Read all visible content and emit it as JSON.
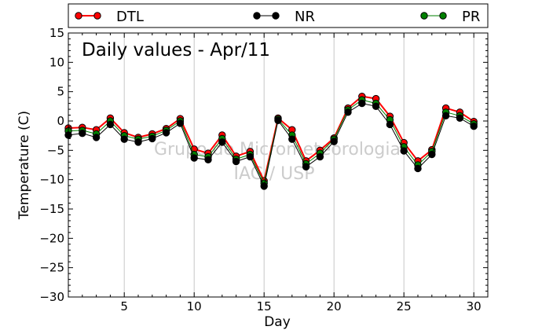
{
  "chart_data": {
    "type": "line",
    "title": "Daily values - Apr/11",
    "xlabel": "Day",
    "ylabel": "Temperature (C)",
    "watermark": [
      "Grupo de Micrometeorologia",
      "IAG / USP"
    ],
    "xlim": [
      1,
      31
    ],
    "ylim": [
      -30,
      15
    ],
    "xticks": [
      5,
      10,
      15,
      20,
      25,
      30
    ],
    "yticks": [
      -30,
      -25,
      -20,
      -15,
      -10,
      -5,
      0,
      5,
      10,
      15
    ],
    "grid": "vertical",
    "legend_position": "top",
    "x": [
      1,
      2,
      3,
      4,
      5,
      6,
      7,
      8,
      9,
      10,
      11,
      12,
      13,
      14,
      15,
      16,
      17,
      18,
      19,
      20,
      21,
      22,
      23,
      24,
      25,
      26,
      27,
      28,
      29,
      30
    ],
    "series": [
      {
        "name": "DTL",
        "color": "#ff0000",
        "values": [
          -1.2,
          -1.1,
          -1.5,
          0.5,
          -2.0,
          -2.8,
          -2.2,
          -1.3,
          0.4,
          -4.8,
          -5.5,
          -2.4,
          -6.0,
          -5.2,
          -10.2,
          0.5,
          -1.5,
          -6.8,
          -5.0,
          -2.9,
          2.2,
          4.2,
          3.8,
          0.8,
          -3.7,
          -6.8,
          -4.9,
          2.2,
          1.5,
          -0.1
        ]
      },
      {
        "name": "NR",
        "color": "#000000",
        "values": [
          -2.4,
          -2.1,
          -2.8,
          -0.6,
          -3.1,
          -3.6,
          -3.0,
          -2.0,
          -0.4,
          -6.3,
          -6.6,
          -3.6,
          -6.9,
          -6.1,
          -11.1,
          0.1,
          -3.1,
          -7.8,
          -6.1,
          -3.5,
          1.5,
          3.0,
          2.5,
          -0.6,
          -5.1,
          -8.1,
          -5.7,
          0.9,
          0.5,
          -0.9
        ]
      },
      {
        "name": "PR",
        "color": "#008000",
        "values": [
          -1.7,
          -1.6,
          -2.2,
          0.0,
          -2.5,
          -3.1,
          -2.6,
          -1.6,
          0.0,
          -5.7,
          -6.1,
          -3.0,
          -6.5,
          -5.7,
          -10.6,
          0.3,
          -2.4,
          -7.3,
          -5.5,
          -3.1,
          1.9,
          3.6,
          3.0,
          0.2,
          -4.4,
          -7.5,
          -5.2,
          1.5,
          0.9,
          -0.5
        ]
      }
    ]
  }
}
